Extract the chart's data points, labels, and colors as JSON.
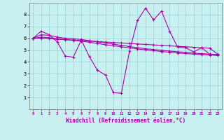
{
  "xlabel": "Windchill (Refroidissement éolien,°C)",
  "xlim": [
    -0.5,
    23.5
  ],
  "ylim": [
    0,
    9
  ],
  "yticks": [
    1,
    2,
    3,
    4,
    5,
    6,
    7,
    8
  ],
  "xticks": [
    0,
    1,
    2,
    3,
    4,
    5,
    6,
    7,
    8,
    9,
    10,
    11,
    12,
    13,
    14,
    15,
    16,
    17,
    18,
    19,
    20,
    21,
    22,
    23
  ],
  "bg_color": "#c8f0f0",
  "grid_color": "#a0d8d8",
  "line_color": "#aa00aa",
  "lines": [
    [
      6.0,
      6.6,
      6.3,
      5.7,
      4.5,
      4.4,
      5.85,
      4.45,
      3.3,
      2.9,
      1.4,
      1.35,
      4.9,
      7.5,
      8.55,
      7.55,
      8.3,
      6.6,
      5.25,
      5.2,
      4.85,
      5.2,
      4.65,
      4.6
    ],
    [
      6.0,
      6.3,
      6.25,
      6.1,
      6.0,
      5.95,
      5.9,
      5.8,
      5.7,
      5.6,
      5.5,
      5.4,
      5.3,
      5.2,
      5.12,
      5.05,
      4.98,
      4.92,
      4.86,
      4.8,
      4.74,
      4.7,
      4.66,
      4.62
    ],
    [
      6.0,
      6.1,
      6.05,
      5.97,
      5.9,
      5.83,
      5.76,
      5.66,
      5.56,
      5.46,
      5.37,
      5.28,
      5.19,
      5.1,
      5.02,
      4.95,
      4.88,
      4.82,
      4.76,
      4.71,
      4.66,
      4.62,
      4.58,
      4.54
    ],
    [
      6.0,
      6.0,
      5.96,
      5.92,
      5.88,
      5.84,
      5.8,
      5.76,
      5.72,
      5.68,
      5.64,
      5.6,
      5.56,
      5.52,
      5.48,
      5.44,
      5.4,
      5.36,
      5.32,
      5.28,
      5.24,
      5.2,
      5.16,
      4.65
    ]
  ]
}
